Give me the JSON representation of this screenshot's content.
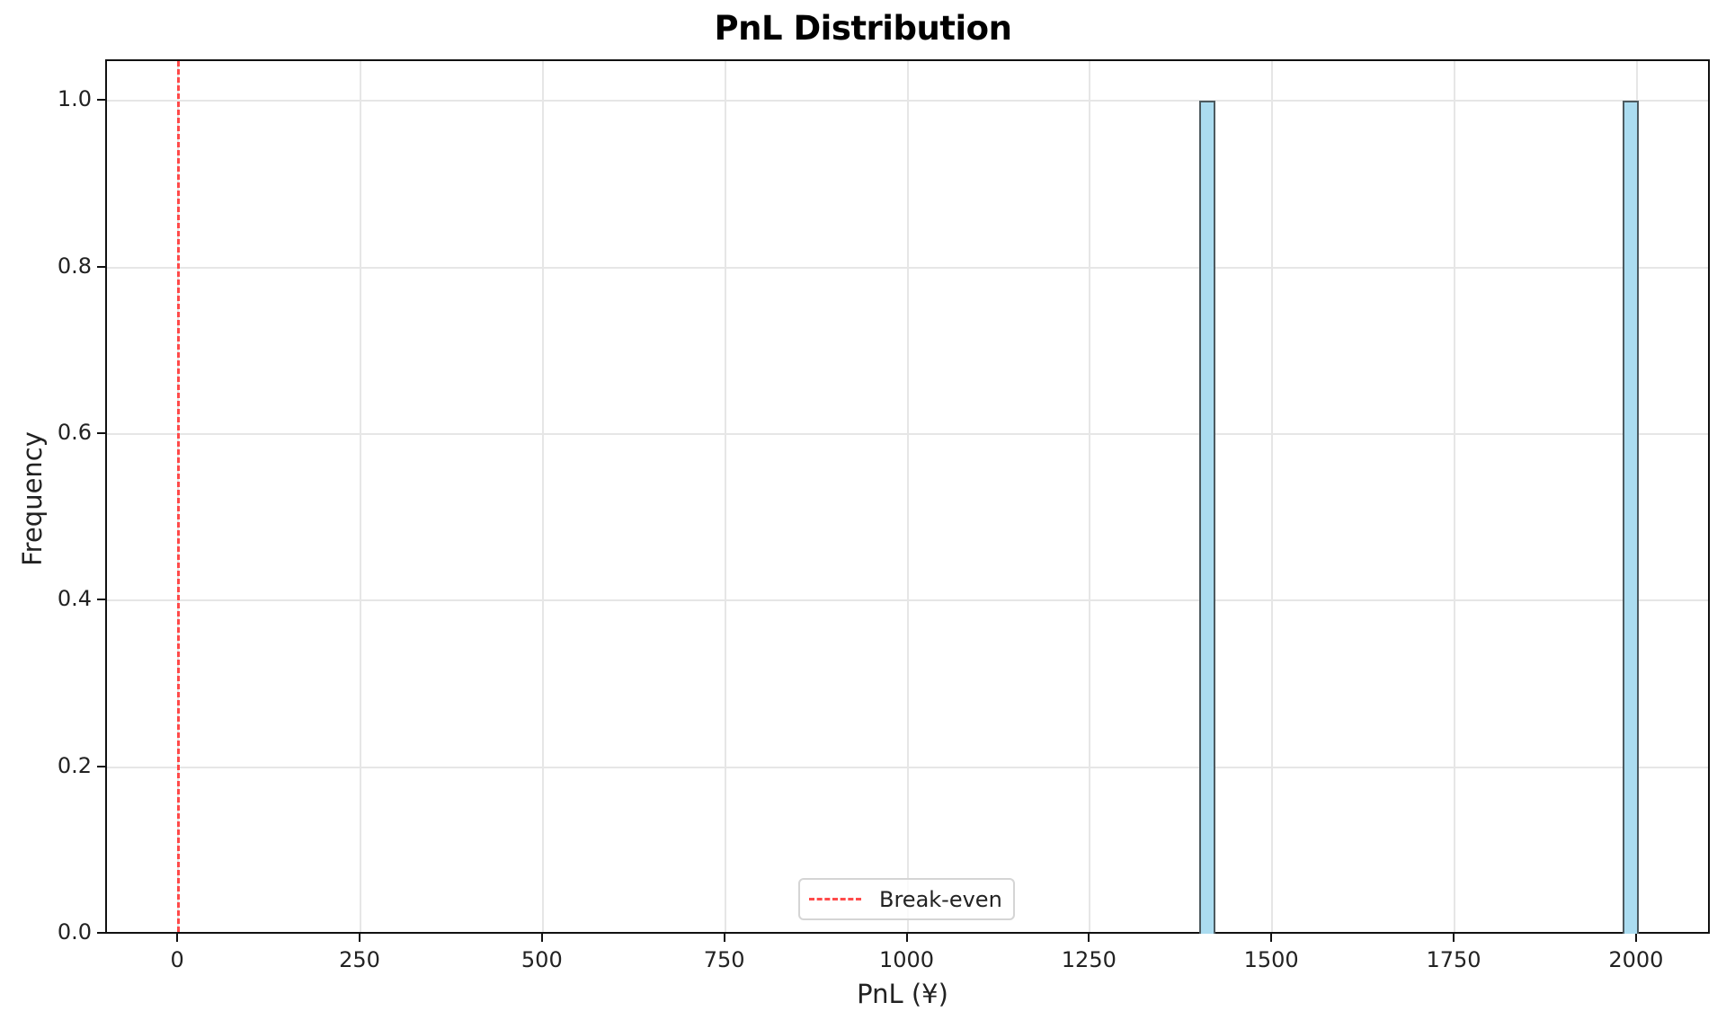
{
  "chart_data": {
    "type": "bar",
    "subtype": "histogram",
    "title": "PnL Distribution",
    "xlabel": "PnL (¥)",
    "ylabel": "Frequency",
    "xlim": [
      -100,
      2100
    ],
    "ylim": [
      0,
      1.05
    ],
    "grid": true,
    "x_ticks": [
      0,
      250,
      500,
      750,
      1000,
      1250,
      1500,
      1750,
      2000
    ],
    "x_tick_labels": [
      "0",
      "250",
      "500",
      "750",
      "1000",
      "1250",
      "1500",
      "1750",
      "2000"
    ],
    "y_ticks": [
      0.0,
      0.2,
      0.4,
      0.6,
      0.8,
      1.0
    ],
    "y_tick_labels": [
      "0.0",
      "0.2",
      "0.4",
      "0.6",
      "0.8",
      "1.0"
    ],
    "bins": [
      {
        "x0": 1400,
        "x1": 1420,
        "count": 1
      },
      {
        "x0": 1980,
        "x1": 2000,
        "count": 1
      }
    ],
    "data_values": [
      1400,
      2000
    ],
    "reference_lines": [
      {
        "x": 0,
        "label": "Break-even",
        "style": "dashed",
        "color": "#ff4a4a"
      }
    ],
    "legend": {
      "position": "lower center",
      "entries": [
        "Break-even"
      ]
    },
    "colors": {
      "bar_fill": "#abdcf0",
      "bar_edge": "#4d5a5f",
      "grid": "#e6e6e6",
      "breakeven": "#ff4a4a"
    }
  }
}
